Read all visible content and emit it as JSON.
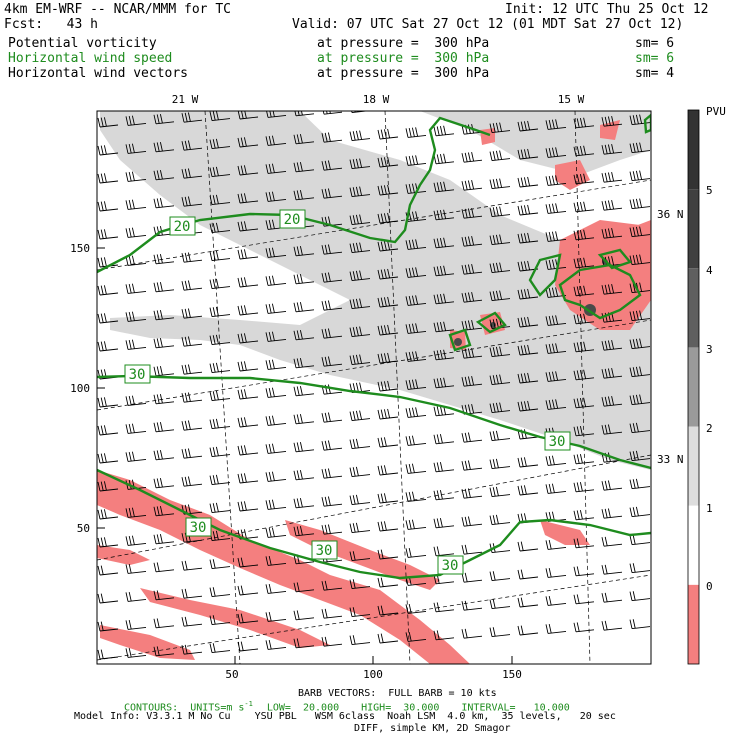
{
  "header": {
    "model": "4km EM-WRF -- NCAR/MMM for TC",
    "init": "Init: 12 UTC Thu 25 Oct 12",
    "fcst": "Fcst:   43 h",
    "valid": "Valid: 07 UTC Sat 27 Oct 12 (01 MDT Sat 27 Oct 12)"
  },
  "fields": [
    {
      "name": "Potential vorticity",
      "pressure": "at pressure =  300 hPa",
      "sm": "sm= 6",
      "color": "#000000"
    },
    {
      "name": "Horizontal wind speed",
      "pressure": "at pressure =  300 hPa",
      "sm": "sm= 6",
      "color": "#1e8c1e"
    },
    {
      "name": "Horizontal wind vectors",
      "pressure": "at pressure =  300 hPa",
      "sm": "sm= 4",
      "color": "#000000"
    }
  ],
  "map": {
    "lon_labels": [
      "21 W",
      "18 W",
      "15 W"
    ],
    "lat_labels": [
      "36 N",
      "33 N"
    ],
    "x_ticks": [
      "50",
      "100",
      "150"
    ],
    "y_ticks": [
      "150",
      "100",
      "50"
    ],
    "contour_labels": [
      "20",
      "20",
      "30",
      "30",
      "30",
      "30",
      "30"
    ],
    "colors": {
      "light": "#d8d8d8",
      "pink": "#f47f7f",
      "contour": "#1e8c1e"
    }
  },
  "colorbar": {
    "unit": "PVU",
    "labels": [
      "5",
      "4",
      "3",
      "2",
      "1",
      "0"
    ],
    "colors": [
      "#404040",
      "#5f5f5f",
      "#9a9a9a",
      "#dddddd",
      "#ffffff",
      "#f47f7f"
    ]
  },
  "footer": {
    "barb": "BARB VECTORS:  FULL BARB = 10 kts",
    "contours": "CONTOURS:  UNITS=m s",
    "superscript": "-1",
    "low": "LOW=  20.000",
    "high": "HIGH=  30.000",
    "interval": "INTERVAL=   10.000",
    "model_info": "Model Info: V3.3.1 M No Cu    YSU PBL   WSM 6class  Noah LSM  4.0 km,  35 levels,   20 sec",
    "diff": "DIFF, simple KM, 2D Smagor"
  }
}
